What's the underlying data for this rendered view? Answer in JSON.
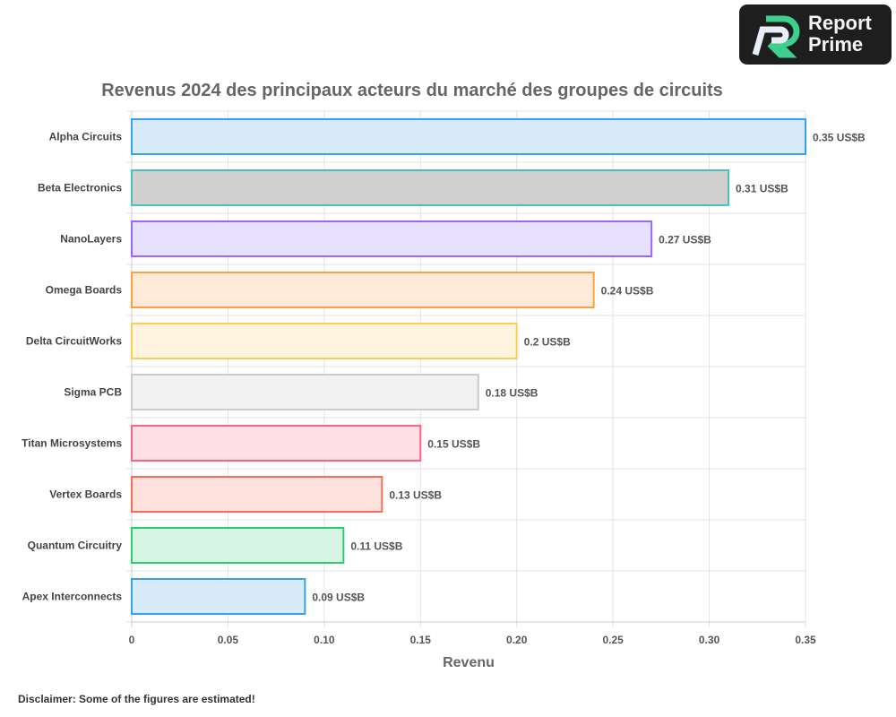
{
  "logo": {
    "text_line1": "Report",
    "text_line2": "Prime"
  },
  "disclaimer": "Disclaimer: Some of the figures are estimated!",
  "chart_data": {
    "type": "bar",
    "orientation": "horizontal",
    "title": "Revenus 2024 des principaux acteurs du marché des groupes de circuits",
    "xlabel": "Revenu",
    "ylabel": "",
    "xlim": [
      0,
      0.35
    ],
    "xticks": [
      "0",
      "0.05",
      "0.10",
      "0.15",
      "0.20",
      "0.25",
      "0.30",
      "0.35"
    ],
    "grid": true,
    "value_suffix": " US$B",
    "categories": [
      "Alpha Circuits",
      "Beta Electronics",
      "NanoLayers",
      "Omega Boards",
      "Delta CircuitWorks",
      "Sigma PCB",
      "Titan Microsystems",
      "Vertex Boards",
      "Quantum Circuitry",
      "Apex Interconnects"
    ],
    "values": [
      0.35,
      0.31,
      0.27,
      0.24,
      0.2,
      0.18,
      0.15,
      0.13,
      0.11,
      0.09
    ],
    "data_labels": [
      "0.35 US$B",
      "0.31 US$B",
      "0.27 US$B",
      "0.24 US$B",
      "0.2 US$B",
      "0.18 US$B",
      "0.15 US$B",
      "0.13 US$B",
      "0.11 US$B",
      "0.09 US$B"
    ],
    "border_colors": [
      "#36A2EB",
      "#4BC0C0",
      "#9966FF",
      "#FF9F40",
      "#FFCD56",
      "#C9CBCF",
      "#FF6384",
      "#FF6B57",
      "#2ECC71",
      "#36A2EB"
    ],
    "fill_colors": [
      "#D7EBF9",
      "#CFD0CF",
      "#E8E0FF",
      "#FFEAD8",
      "#FFF4DD",
      "#F2F2F2",
      "#FFE0E6",
      "#FFE1DD",
      "#D6F5E3",
      "#D7EBF9"
    ]
  }
}
